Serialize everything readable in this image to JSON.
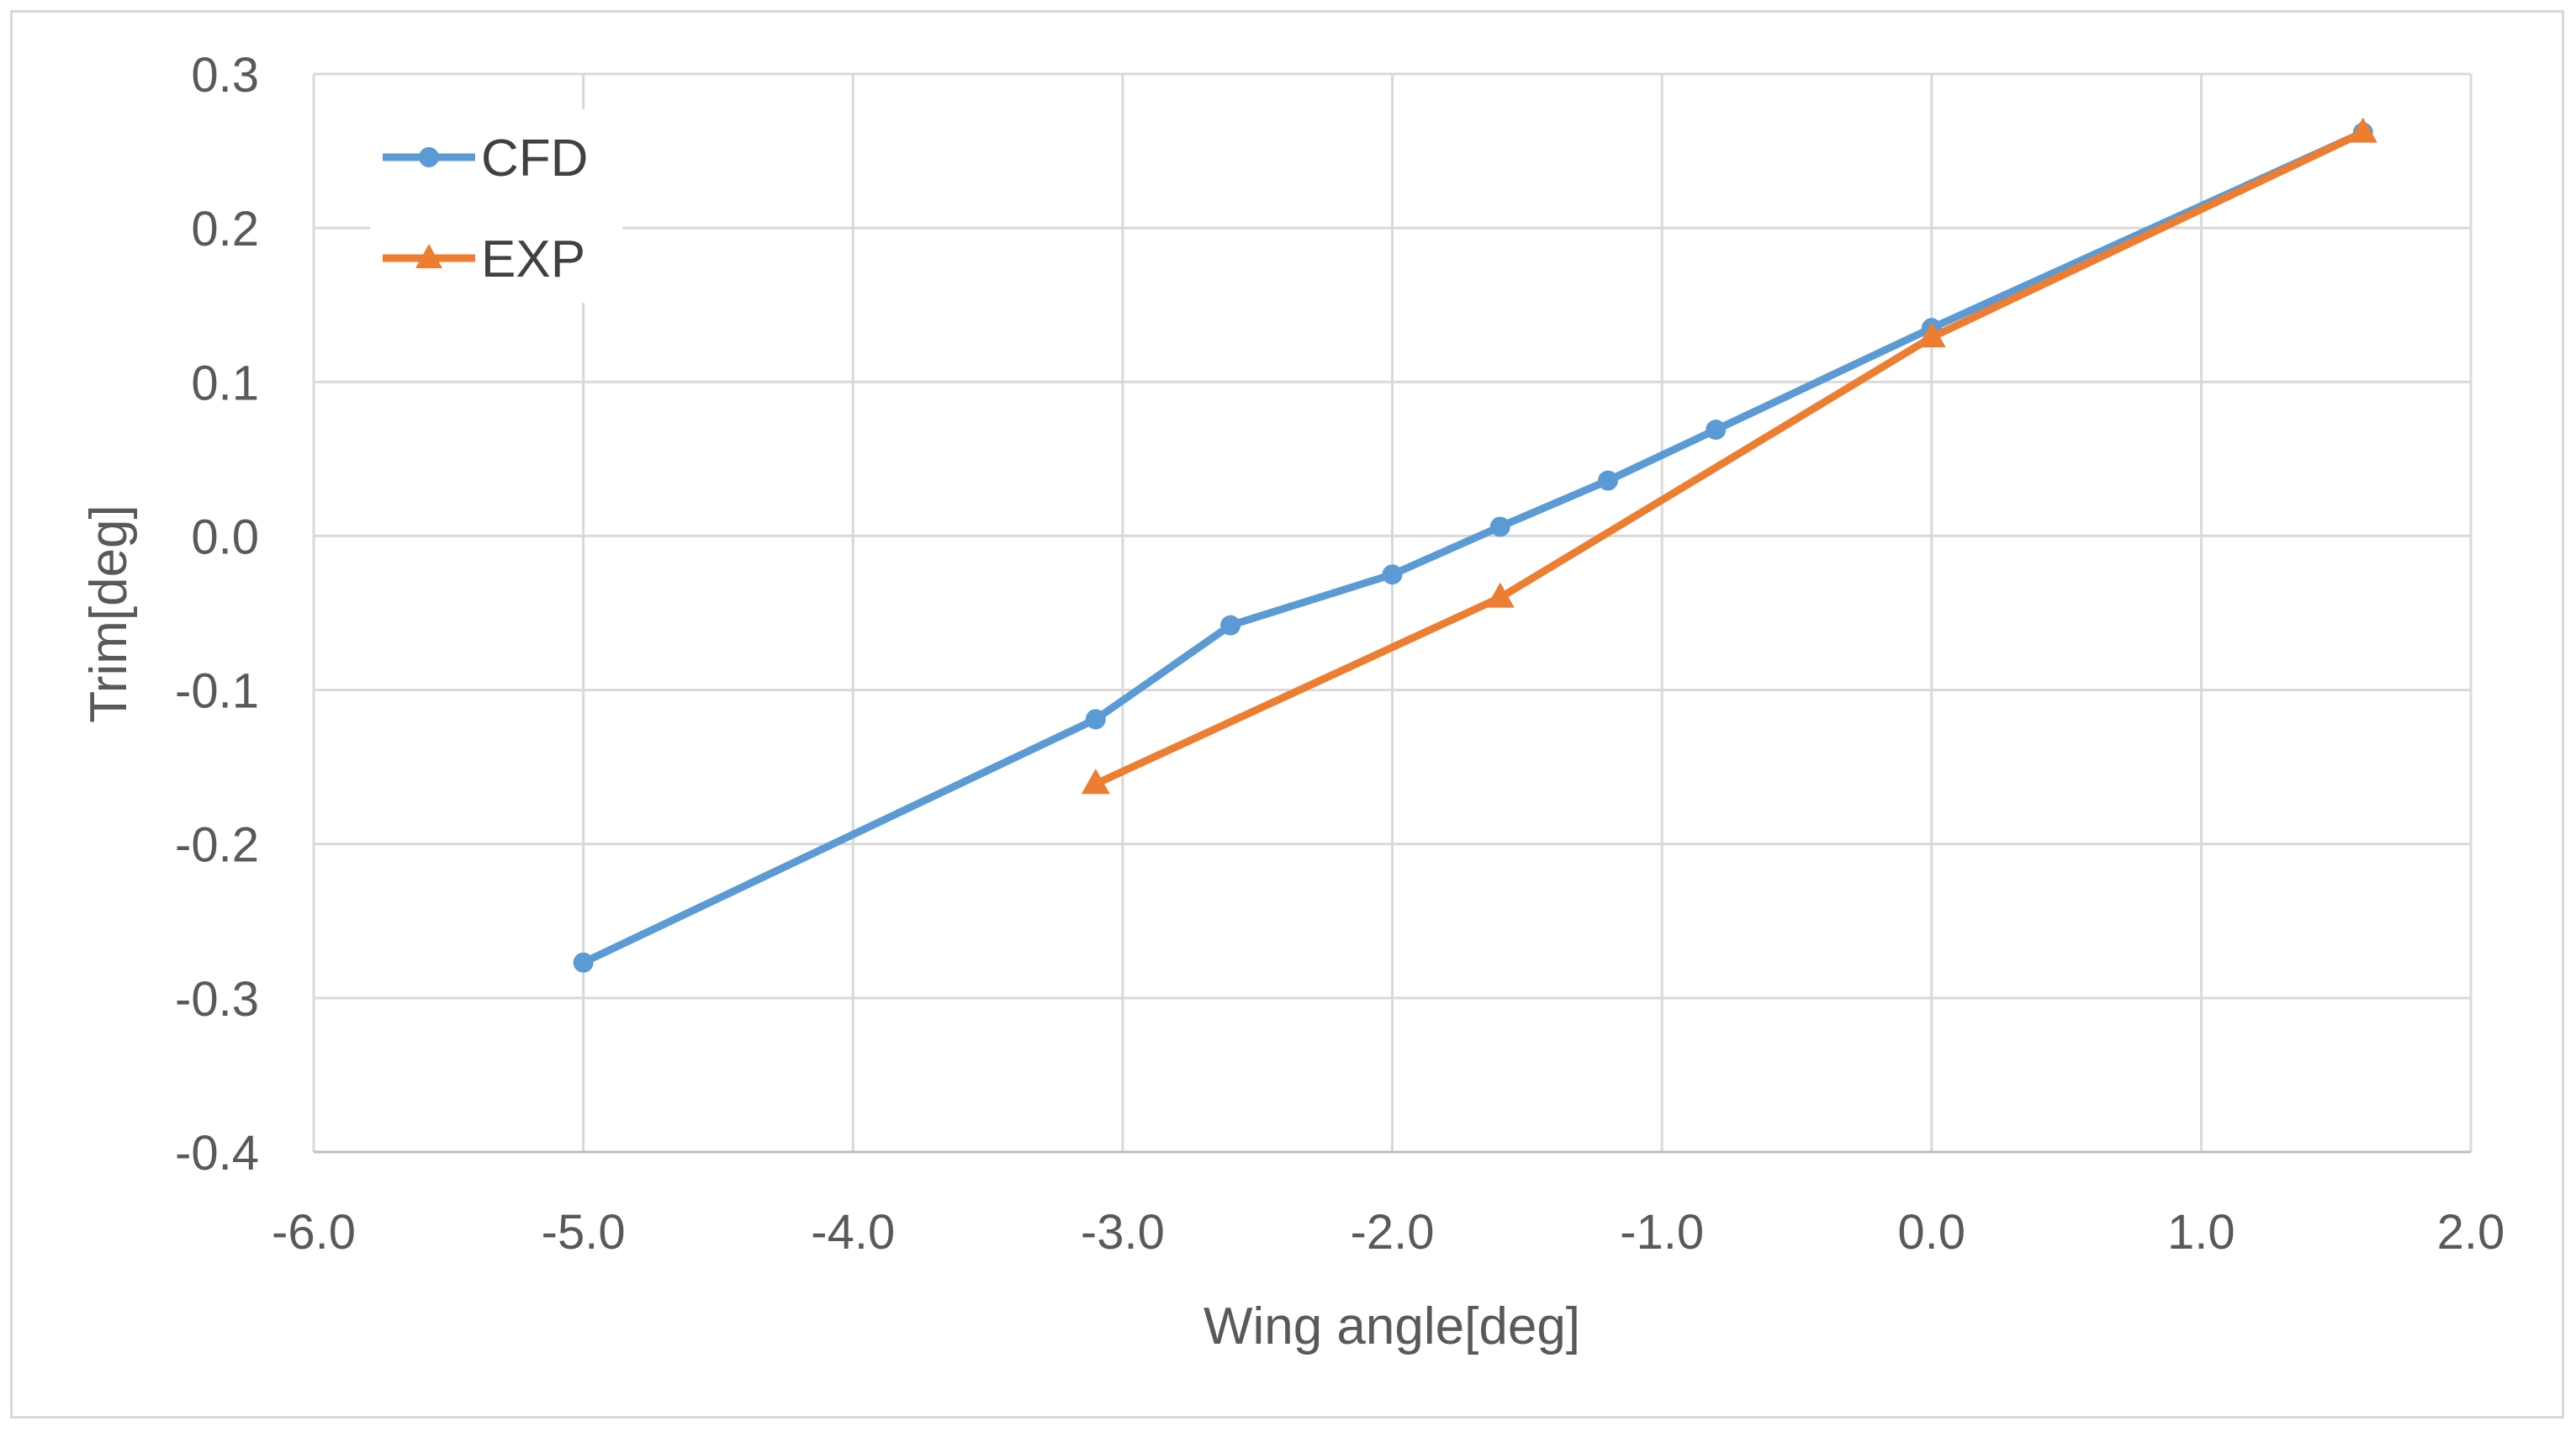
{
  "chart_data": {
    "type": "line",
    "title": "",
    "xlabel": "Wing angle[deg]",
    "ylabel": "Trim[deg]",
    "xlim": [
      -6.0,
      2.0
    ],
    "ylim": [
      -0.4,
      0.3
    ],
    "xticks": [
      -6.0,
      -5.0,
      -4.0,
      -3.0,
      -2.0,
      -1.0,
      0.0,
      1.0,
      2.0
    ],
    "xtick_labels": [
      "-6.0",
      "-5.0",
      "-4.0",
      "-3.0",
      "-2.0",
      "-1.0",
      "0.0",
      "1.0",
      "2.0"
    ],
    "yticks": [
      -0.4,
      -0.3,
      -0.2,
      -0.1,
      0.0,
      0.1,
      0.2,
      0.3
    ],
    "ytick_labels": [
      "-0.4",
      "-0.3",
      "-0.2",
      "-0.1",
      "0.0",
      "0.1",
      "0.2",
      "0.3"
    ],
    "grid": true,
    "legend_position": "top-left",
    "series": [
      {
        "name": "CFD",
        "color": "#5b9bd5",
        "marker": "circle",
        "x": [
          -5.0,
          -3.1,
          -2.6,
          -2.0,
          -1.6,
          -1.2,
          -0.8,
          0.0,
          1.6
        ],
        "y": [
          -0.277,
          -0.119,
          -0.058,
          -0.025,
          0.006,
          0.036,
          0.069,
          0.135,
          0.262
        ]
      },
      {
        "name": "EXP",
        "color": "#ed7d31",
        "marker": "triangle",
        "x": [
          -3.1,
          -1.6,
          0.0,
          1.6
        ],
        "y": [
          -0.161,
          -0.04,
          0.129,
          0.262
        ]
      }
    ]
  }
}
